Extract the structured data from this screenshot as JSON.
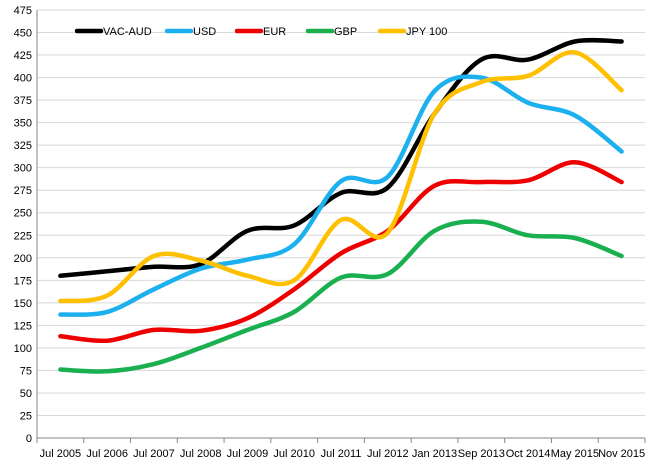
{
  "chart_data": {
    "type": "line",
    "title": "",
    "xlabel": "",
    "ylabel": "",
    "ylim": [
      0,
      475
    ],
    "yticks": [
      0,
      25,
      50,
      75,
      100,
      125,
      150,
      175,
      200,
      225,
      250,
      275,
      300,
      325,
      350,
      375,
      400,
      425,
      450,
      475
    ],
    "grid": "horizontal",
    "legend": "top-left",
    "categories": [
      "Jul 2005",
      "Jul 2006",
      "Jul 2007",
      "Jul 2008",
      "Jul 2009",
      "Jul 2010",
      "Jul 2011",
      "Jul 2012",
      "Jan 2013",
      "Sep 2013",
      "Oct 2014",
      "May 2015",
      "Nov 2015"
    ],
    "series": [
      {
        "name": "VAC-AUD",
        "color": "#000000",
        "values": [
          180,
          185,
          190,
          193,
          230,
          236,
          272,
          278,
          360,
          420,
          420,
          440,
          440
        ]
      },
      {
        "name": "USD",
        "color": "#1cb0ee",
        "values": [
          137,
          140,
          165,
          188,
          198,
          215,
          285,
          290,
          385,
          400,
          372,
          358,
          318
        ]
      },
      {
        "name": "EUR",
        "color": "#ef0000",
        "values": [
          113,
          108,
          120,
          119,
          133,
          165,
          205,
          230,
          280,
          284,
          286,
          306,
          284
        ]
      },
      {
        "name": "GBP",
        "color": "#1aaf4f",
        "values": [
          76,
          74,
          82,
          100,
          120,
          140,
          178,
          182,
          230,
          240,
          225,
          222,
          202
        ]
      },
      {
        "name": "JPY 100",
        "color": "#ffc000",
        "values": [
          152,
          158,
          202,
          197,
          180,
          175,
          242,
          228,
          360,
          395,
          402,
          428,
          386
        ]
      }
    ]
  }
}
